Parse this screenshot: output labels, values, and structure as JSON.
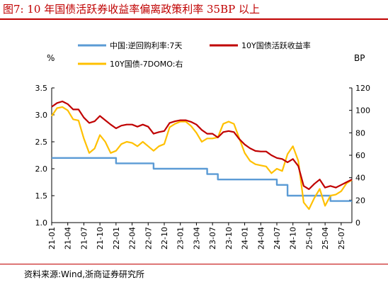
{
  "title": "图7:   10 年国债活跃券收益率偏离政策利率 35BP 以上",
  "source": "资料来源:Wind,浙商证券研究所",
  "chart_data": {
    "type": "line",
    "left_unit": "%",
    "right_unit": "BP",
    "left_ylim": [
      1.0,
      3.5
    ],
    "right_ylim": [
      0,
      120
    ],
    "left_ticks": [
      "1.0",
      "1.5",
      "2.0",
      "2.5",
      "3.0",
      "3.5"
    ],
    "right_ticks": [
      "0",
      "20",
      "40",
      "60",
      "80",
      "100",
      "120"
    ],
    "x_range": [
      "2021-01",
      "2025-09"
    ],
    "x_ticks": [
      "21-01",
      "21-04",
      "21-07",
      "21-10",
      "22-01",
      "22-04",
      "22-07",
      "22-10",
      "23-01",
      "23-04",
      "23-07",
      "23-10",
      "24-01",
      "24-04",
      "24-07",
      "24-10",
      "25-01",
      "25-04",
      "25-07"
    ],
    "grid": false,
    "legend": "top",
    "series": [
      {
        "name": "中国:逆回购利率:7天",
        "axis": "left",
        "color": "#5b9bd5",
        "points": [
          [
            "2021-01",
            2.2
          ],
          [
            "2022-01",
            2.2
          ],
          [
            "2022-01",
            2.1
          ],
          [
            "2022-08",
            2.1
          ],
          [
            "2022-08",
            2.0
          ],
          [
            "2023-06",
            2.0
          ],
          [
            "2023-06",
            1.9
          ],
          [
            "2023-08",
            1.9
          ],
          [
            "2023-08",
            1.8
          ],
          [
            "2024-07",
            1.8
          ],
          [
            "2024-07",
            1.7
          ],
          [
            "2024-09",
            1.7
          ],
          [
            "2024-09",
            1.5
          ],
          [
            "2025-05",
            1.5
          ],
          [
            "2025-05",
            1.4
          ],
          [
            "2025-09",
            1.4
          ]
        ]
      },
      {
        "name": "10Y国债活跃收益率",
        "axis": "left",
        "color": "#c00000",
        "points": [
          [
            "2021-01",
            3.15
          ],
          [
            "2021-02",
            3.22
          ],
          [
            "2021-03",
            3.25
          ],
          [
            "2021-04",
            3.2
          ],
          [
            "2021-05",
            3.1
          ],
          [
            "2021-06",
            3.1
          ],
          [
            "2021-07",
            2.95
          ],
          [
            "2021-08",
            2.85
          ],
          [
            "2021-09",
            2.88
          ],
          [
            "2021-10",
            2.98
          ],
          [
            "2021-11",
            2.9
          ],
          [
            "2021-12",
            2.82
          ],
          [
            "2022-01",
            2.75
          ],
          [
            "2022-02",
            2.8
          ],
          [
            "2022-03",
            2.82
          ],
          [
            "2022-04",
            2.82
          ],
          [
            "2022-05",
            2.78
          ],
          [
            "2022-06",
            2.82
          ],
          [
            "2022-07",
            2.78
          ],
          [
            "2022-08",
            2.65
          ],
          [
            "2022-09",
            2.68
          ],
          [
            "2022-10",
            2.7
          ],
          [
            "2022-11",
            2.85
          ],
          [
            "2022-12",
            2.88
          ],
          [
            "2023-01",
            2.9
          ],
          [
            "2023-02",
            2.9
          ],
          [
            "2023-03",
            2.87
          ],
          [
            "2023-04",
            2.82
          ],
          [
            "2023-05",
            2.72
          ],
          [
            "2023-06",
            2.65
          ],
          [
            "2023-07",
            2.65
          ],
          [
            "2023-08",
            2.58
          ],
          [
            "2023-09",
            2.68
          ],
          [
            "2023-10",
            2.7
          ],
          [
            "2023-11",
            2.68
          ],
          [
            "2023-12",
            2.55
          ],
          [
            "2024-01",
            2.45
          ],
          [
            "2024-02",
            2.38
          ],
          [
            "2024-03",
            2.33
          ],
          [
            "2024-04",
            2.32
          ],
          [
            "2024-05",
            2.32
          ],
          [
            "2024-06",
            2.25
          ],
          [
            "2024-07",
            2.2
          ],
          [
            "2024-08",
            2.18
          ],
          [
            "2024-09",
            2.12
          ],
          [
            "2024-10",
            2.18
          ],
          [
            "2024-11",
            2.05
          ],
          [
            "2024-12",
            1.68
          ],
          [
            "2025-01",
            1.62
          ],
          [
            "2025-02",
            1.72
          ],
          [
            "2025-03",
            1.8
          ],
          [
            "2025-04",
            1.65
          ],
          [
            "2025-05",
            1.68
          ],
          [
            "2025-06",
            1.65
          ],
          [
            "2025-07",
            1.7
          ],
          [
            "2025-08",
            1.75
          ],
          [
            "2025-09",
            1.8
          ]
        ]
      },
      {
        "name": "10Y国债-7DOMO:右",
        "axis": "right",
        "color": "#ffc000",
        "points": [
          [
            "2021-01",
            95
          ],
          [
            "2021-02",
            102
          ],
          [
            "2021-03",
            103
          ],
          [
            "2021-04",
            100
          ],
          [
            "2021-05",
            92
          ],
          [
            "2021-06",
            91
          ],
          [
            "2021-07",
            75
          ],
          [
            "2021-08",
            62
          ],
          [
            "2021-09",
            66
          ],
          [
            "2021-10",
            78
          ],
          [
            "2021-11",
            72
          ],
          [
            "2021-12",
            62
          ],
          [
            "2022-01",
            64
          ],
          [
            "2022-02",
            70
          ],
          [
            "2022-03",
            72
          ],
          [
            "2022-04",
            71
          ],
          [
            "2022-05",
            68
          ],
          [
            "2022-06",
            72
          ],
          [
            "2022-07",
            68
          ],
          [
            "2022-08",
            64
          ],
          [
            "2022-09",
            68
          ],
          [
            "2022-10",
            70
          ],
          [
            "2022-11",
            85
          ],
          [
            "2022-12",
            88
          ],
          [
            "2023-01",
            90
          ],
          [
            "2023-02",
            90
          ],
          [
            "2023-03",
            86
          ],
          [
            "2023-04",
            80
          ],
          [
            "2023-05",
            72
          ],
          [
            "2023-06",
            75
          ],
          [
            "2023-07",
            75
          ],
          [
            "2023-08",
            76
          ],
          [
            "2023-09",
            88
          ],
          [
            "2023-10",
            90
          ],
          [
            "2023-11",
            88
          ],
          [
            "2023-12",
            75
          ],
          [
            "2024-01",
            62
          ],
          [
            "2024-02",
            55
          ],
          [
            "2024-03",
            52
          ],
          [
            "2024-04",
            51
          ],
          [
            "2024-05",
            50
          ],
          [
            "2024-06",
            44
          ],
          [
            "2024-07",
            48
          ],
          [
            "2024-08",
            46
          ],
          [
            "2024-09",
            61
          ],
          [
            "2024-10",
            68
          ],
          [
            "2024-11",
            55
          ],
          [
            "2024-12",
            18
          ],
          [
            "2025-01",
            12
          ],
          [
            "2025-02",
            22
          ],
          [
            "2025-03",
            30
          ],
          [
            "2025-04",
            15
          ],
          [
            "2025-05",
            24
          ],
          [
            "2025-06",
            25
          ],
          [
            "2025-07",
            28
          ],
          [
            "2025-08",
            35
          ],
          [
            "2025-09",
            38
          ]
        ]
      }
    ]
  }
}
